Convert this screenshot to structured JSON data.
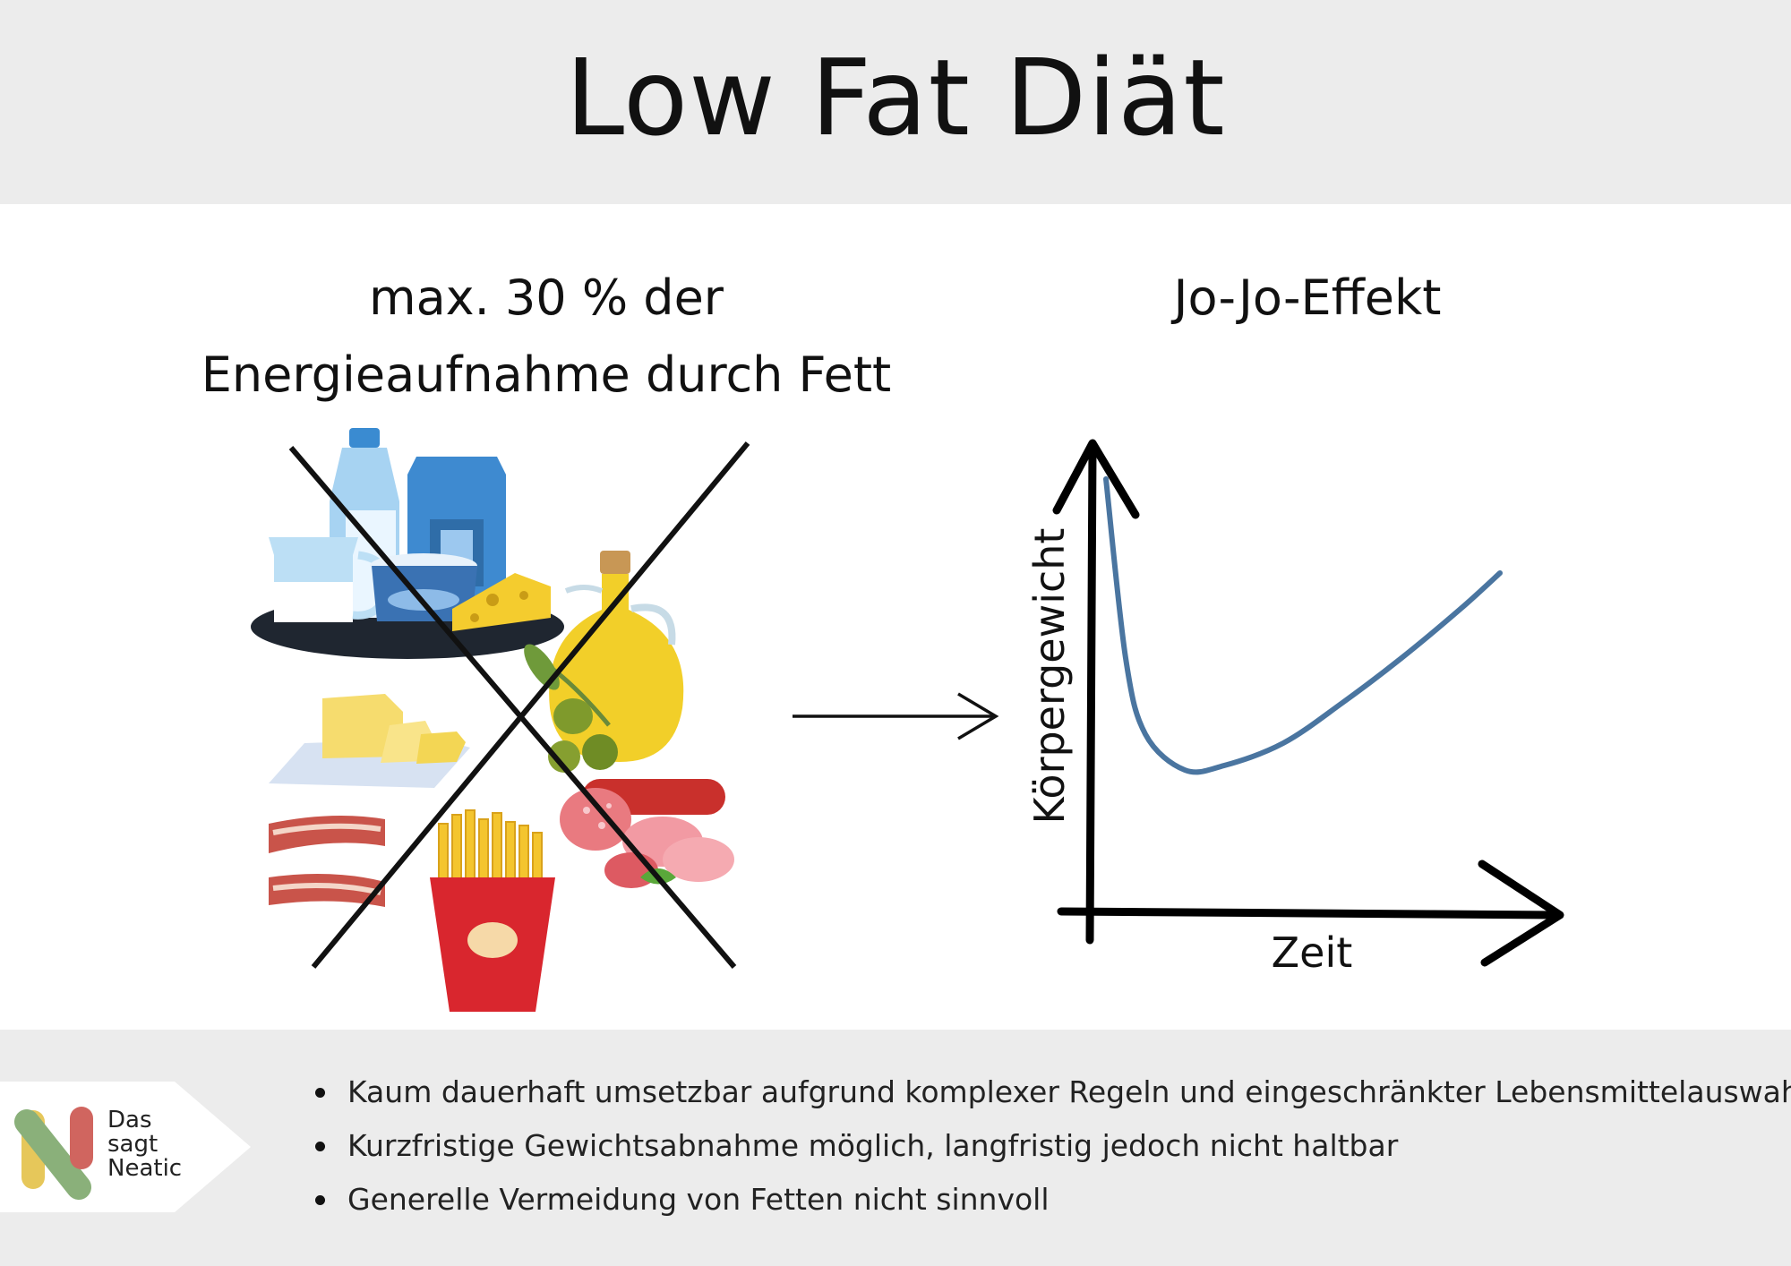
{
  "header": {
    "title": "Low Fat Diät"
  },
  "left": {
    "line1": "max. 30 % der",
    "line2": "Energieaufnahme durch Fett"
  },
  "right": {
    "title": "Jo-Jo-Effekt"
  },
  "chart_data": {
    "type": "line",
    "xlabel": "Zeit",
    "ylabel": "Körpergewicht",
    "x": [
      0,
      0.05,
      0.1,
      0.2,
      0.3,
      0.45,
      0.6,
      0.75,
      0.9,
      1.0
    ],
    "series": [
      {
        "values": [
          0.95,
          0.55,
          0.38,
          0.3,
          0.31,
          0.36,
          0.45,
          0.55,
          0.66,
          0.74
        ]
      }
    ],
    "xlim": [
      0,
      1
    ],
    "ylim": [
      0,
      1
    ],
    "grid": false,
    "line_color": "#4a75a0"
  },
  "food_icons": [
    "milk-bottle-icon",
    "milk-carton-icon",
    "jug-icon",
    "yogurt-icon",
    "cheese-icon",
    "oil-bottle-icon",
    "olives-icon",
    "butter-icon",
    "bacon-icon",
    "fries-icon",
    "salami-icon"
  ],
  "colors": {
    "header_bg": "#ececec",
    "footer_bg": "#ececec",
    "curve": "#4a75a0",
    "logo_red": "#d0655f",
    "logo_green": "#8ab07a",
    "logo_yellow": "#e6c75a"
  },
  "logo": {
    "line1": "Das",
    "line2": "sagt",
    "line3": "Neatic"
  },
  "footer": {
    "bullets": [
      "Kaum dauerhaft umsetzbar aufgrund komplexer Regeln und eingeschränkter Lebensmittelauswahl",
      "Kurzfristige Gewichtsabnahme möglich, langfristig jedoch nicht haltbar",
      "Generelle Vermeidung von Fetten nicht sinnvoll"
    ]
  }
}
